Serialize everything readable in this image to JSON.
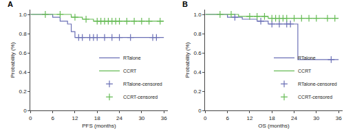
{
  "chart_data": [
    {
      "type": "line",
      "title": "A",
      "x_label": "PFS (months)",
      "y_label": "Probability (%)",
      "xlim": [
        0,
        37
      ],
      "xticks": [
        0,
        6,
        12,
        18,
        24,
        30,
        36
      ],
      "ylim": [
        0,
        1.05
      ],
      "yticks": [
        0,
        0.2,
        0.4,
        0.6,
        0.8,
        {
          "value": 1,
          "label": "1.0"
        }
      ],
      "legend": "right",
      "series": [
        {
          "name": "RTalone",
          "color": "#6a6fb5",
          "type": "step",
          "x": [
            0,
            6,
            8,
            10,
            11,
            12,
            36
          ],
          "values": [
            1,
            0.97,
            0.93,
            0.9,
            0.82,
            0.76,
            0.76
          ]
        },
        {
          "name": "CCRT",
          "color": "#66bb55",
          "type": "step",
          "x": [
            0,
            11,
            14,
            17,
            36
          ],
          "values": [
            1,
            0.97,
            0.95,
            0.93,
            0.93
          ]
        },
        {
          "name": "RTalone-censored",
          "color": "#6a6fb5",
          "type": "scatter",
          "marker": "cross",
          "x": [
            13,
            14,
            16,
            17,
            18,
            20,
            22,
            24,
            27,
            33,
            34
          ],
          "values": [
            0.76,
            0.76,
            0.76,
            0.76,
            0.76,
            0.76,
            0.76,
            0.76,
            0.76,
            0.76,
            0.76
          ]
        },
        {
          "name": "CCRT-censored",
          "color": "#66bb55",
          "type": "scatter",
          "marker": "cross",
          "x": [
            4,
            8,
            12,
            15,
            18,
            19,
            20,
            21,
            22,
            23,
            24,
            26,
            28,
            30,
            32,
            35
          ],
          "values": [
            1,
            1,
            0.97,
            0.95,
            0.93,
            0.93,
            0.93,
            0.93,
            0.93,
            0.93,
            0.93,
            0.93,
            0.93,
            0.93,
            0.93,
            0.93
          ]
        }
      ]
    },
    {
      "type": "line",
      "title": "B",
      "x_label": "OS (months)",
      "y_label": "Probability (%)",
      "xlim": [
        0,
        37
      ],
      "xticks": [
        0,
        6,
        12,
        18,
        24,
        30,
        36
      ],
      "ylim": [
        0,
        1.05
      ],
      "yticks": [
        0,
        0.2,
        0.4,
        0.6,
        0.8,
        {
          "value": 1,
          "label": "1.0"
        }
      ],
      "legend": "right",
      "series": [
        {
          "name": "RTalone",
          "color": "#6a6fb5",
          "type": "step",
          "x": [
            0,
            6,
            10,
            14,
            17,
            25,
            36
          ],
          "values": [
            1,
            0.97,
            0.95,
            0.93,
            0.9,
            0.53,
            0.53
          ]
        },
        {
          "name": "CCRT",
          "color": "#66bb55",
          "type": "step",
          "x": [
            0,
            9,
            17,
            36
          ],
          "values": [
            1,
            0.98,
            0.96,
            0.96
          ]
        },
        {
          "name": "RTalone-censored",
          "color": "#6a6fb5",
          "type": "scatter",
          "marker": "cross",
          "x": [
            8,
            15,
            18,
            20,
            22,
            23,
            34
          ],
          "values": [
            0.97,
            0.93,
            0.9,
            0.9,
            0.9,
            0.9,
            0.53
          ]
        },
        {
          "name": "CCRT-censored",
          "color": "#66bb55",
          "type": "scatter",
          "marker": "cross",
          "x": [
            4,
            7,
            12,
            14,
            16,
            18,
            19,
            20,
            21,
            22,
            24,
            26,
            28,
            30,
            33,
            35
          ],
          "values": [
            1,
            1,
            0.98,
            0.98,
            0.98,
            0.96,
            0.96,
            0.96,
            0.96,
            0.96,
            0.96,
            0.96,
            0.96,
            0.96,
            0.96,
            0.96
          ]
        }
      ]
    }
  ]
}
